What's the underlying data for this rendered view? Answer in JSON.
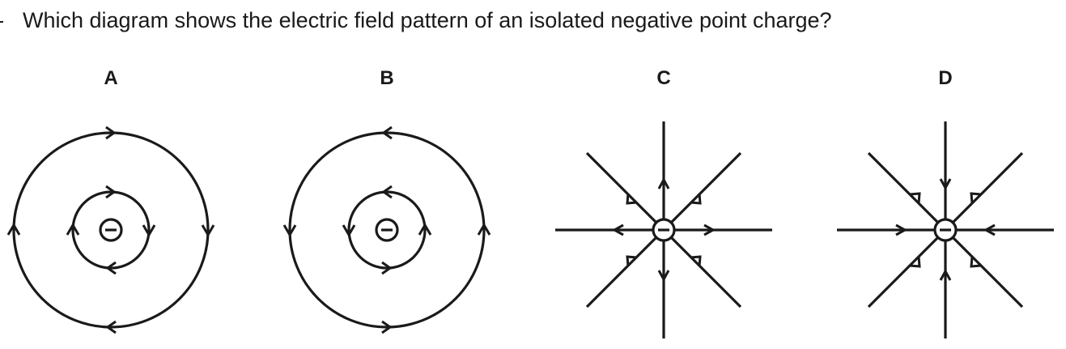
{
  "question": {
    "text": "Which diagram shows the electric field pattern of an isolated negative point charge?"
  },
  "options": [
    {
      "label": "A",
      "pattern": "concentric circles, inner clockwise, outer clockwise"
    },
    {
      "label": "B",
      "pattern": "concentric circles, inner anticlockwise, outer anticlockwise"
    },
    {
      "label": "C",
      "pattern": "radial lines, arrows pointing outward"
    },
    {
      "label": "D",
      "pattern": "radial lines, arrows pointing inward"
    }
  ],
  "charge_symbol": "−"
}
